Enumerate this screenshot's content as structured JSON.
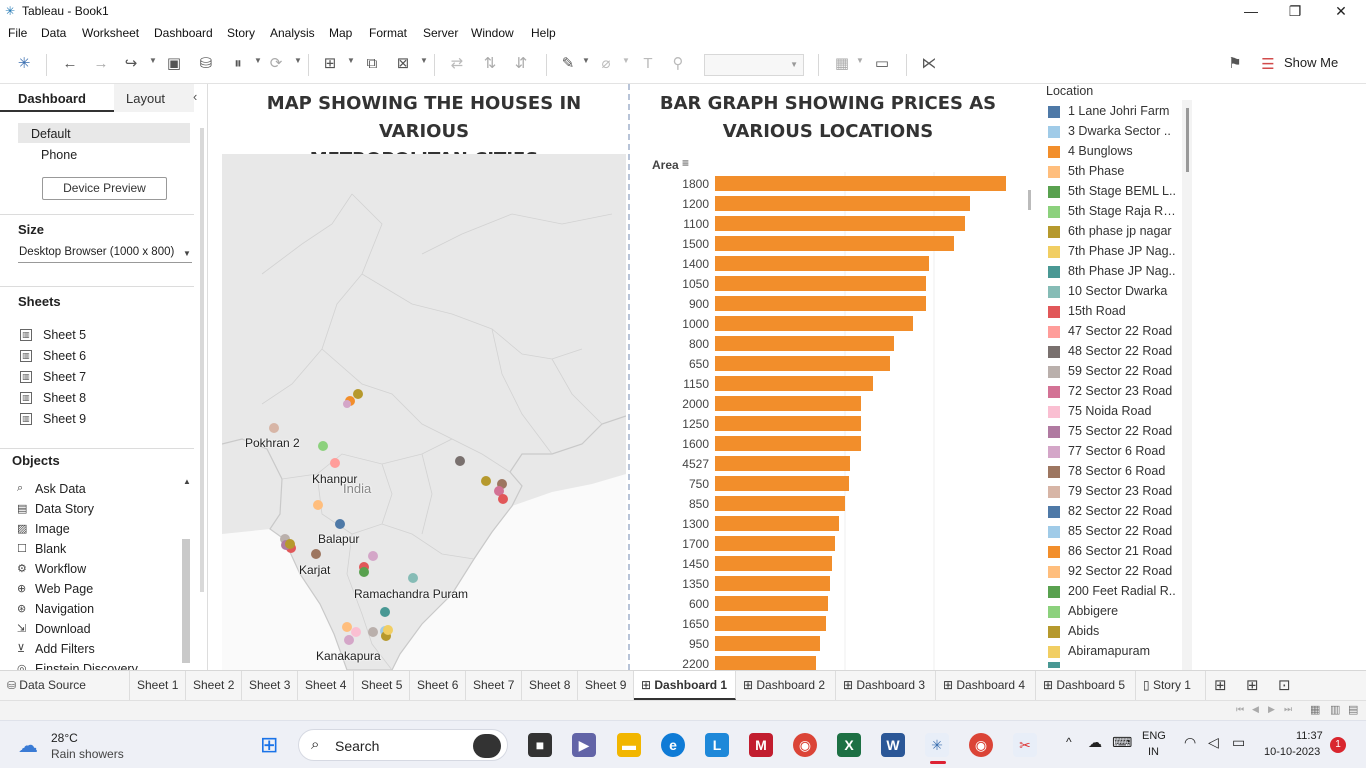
{
  "window": {
    "title": "Tableau - Book1"
  },
  "menu": [
    "File",
    "Data",
    "Worksheet",
    "Dashboard",
    "Story",
    "Analysis",
    "Map",
    "Format",
    "Server",
    "Window",
    "Help"
  ],
  "toolbar": {
    "show_me": "Show Me"
  },
  "left_panel": {
    "tabs": [
      "Dashboard",
      "Layout"
    ],
    "devices": [
      "Default",
      "Phone"
    ],
    "device_preview": "Device Preview",
    "size_title": "Size",
    "size_value": "Desktop Browser (1000 x 800)",
    "sheets_title": "Sheets",
    "sheets": [
      "Sheet 5",
      "Sheet 6",
      "Sheet 7",
      "Sheet 8",
      "Sheet 9"
    ],
    "objects_title": "Objects",
    "objects": [
      "Ask Data",
      "Data Story",
      "Image",
      "Blank",
      "Workflow",
      "Web Page",
      "Navigation",
      "Download",
      "Add Filters",
      "Einstein Discovery"
    ]
  },
  "map": {
    "title_line1": "MAP SHOWING THE HOUSES IN VARIOUS",
    "title_line2": "METROPOLITAN CITIES",
    "country_label": "India",
    "labels": [
      "Pokhran 2",
      "Khanpur",
      "Balapur",
      "Karjat",
      "Ramachandra Puram",
      "Kanakapura"
    ]
  },
  "chart_data": {
    "type": "bar",
    "title": "BAR GRAPH SHOWING PRICES AS VARIOUS LOCATIONS",
    "axis_header": "Area",
    "orientation": "horizontal",
    "color": "#f28e2b",
    "categories": [
      "1800",
      "1200",
      "1100",
      "1500",
      "1400",
      "1050",
      "900",
      "1000",
      "800",
      "650",
      "1150",
      "2000",
      "1250",
      "1600",
      "4527",
      "750",
      "850",
      "1300",
      "1700",
      "1450",
      "1350",
      "600",
      "1650",
      "950",
      "2200"
    ],
    "values": [
      291,
      255,
      250,
      239,
      214,
      211,
      211,
      198,
      179,
      175,
      158,
      146,
      146,
      146,
      135,
      134,
      130,
      124,
      120,
      117,
      115,
      113,
      111,
      105,
      101
    ]
  },
  "legend": {
    "title": "Location",
    "items": [
      {
        "label": "1 Lane Johri Farm",
        "color": "#4e79a7"
      },
      {
        "label": "3 Dwarka Sector ..",
        "color": "#a0cbe8"
      },
      {
        "label": "4 Bunglows",
        "color": "#f28e2b"
      },
      {
        "label": "5th Phase",
        "color": "#ffbe7d"
      },
      {
        "label": "5th Stage BEML L..",
        "color": "#59a14f"
      },
      {
        "label": "5th Stage Raja Ra..",
        "color": "#8cd17d"
      },
      {
        "label": "6th phase jp nagar",
        "color": "#b6992d"
      },
      {
        "label": "7th Phase JP Nag..",
        "color": "#f1ce63"
      },
      {
        "label": "8th Phase JP Nag..",
        "color": "#499894"
      },
      {
        "label": "10 Sector Dwarka",
        "color": "#86bcb6"
      },
      {
        "label": "15th Road",
        "color": "#e15759"
      },
      {
        "label": "47 Sector 22 Road",
        "color": "#ff9d9a"
      },
      {
        "label": "48 Sector 22 Road",
        "color": "#79706e"
      },
      {
        "label": "59 Sector 22 Road",
        "color": "#bab0ac"
      },
      {
        "label": "72 Sector 23 Road",
        "color": "#d37295"
      },
      {
        "label": "75 Noida Road",
        "color": "#fabfd2"
      },
      {
        "label": "75 Sector 22 Road",
        "color": "#b07aa1"
      },
      {
        "label": "77 Sector 6 Road",
        "color": "#d4a6c8"
      },
      {
        "label": "78 Sector 6 Road",
        "color": "#9d7660"
      },
      {
        "label": "79 Sector 23 Road",
        "color": "#d7b5a6"
      },
      {
        "label": "82 Sector 22 Road",
        "color": "#4e79a7"
      },
      {
        "label": "85 Sector 22 Road",
        "color": "#a0cbe8"
      },
      {
        "label": "86 Sector 21 Road",
        "color": "#f28e2b"
      },
      {
        "label": "92 Sector 22 Road",
        "color": "#ffbe7d"
      },
      {
        "label": "200 Feet Radial R..",
        "color": "#59a14f"
      },
      {
        "label": "Abbigere",
        "color": "#8cd17d"
      },
      {
        "label": "Abids",
        "color": "#b6992d"
      },
      {
        "label": "Abiramapuram",
        "color": "#f1ce63"
      }
    ]
  },
  "tabs": [
    "Data Source",
    "Sheet 1",
    "Sheet 2",
    "Sheet 3",
    "Sheet 4",
    "Sheet 5",
    "Sheet 6",
    "Sheet 7",
    "Sheet 8",
    "Sheet 9",
    "Dashboard 1",
    "Dashboard 2",
    "Dashboard 3",
    "Dashboard 4",
    "Dashboard 5",
    "Story 1"
  ],
  "active_tab": "Dashboard 1",
  "taskbar": {
    "weather_temp": "28°C",
    "weather_desc": "Rain showers",
    "search": "Search",
    "lang1": "ENG",
    "lang2": "IN",
    "time": "11:37",
    "date": "10-10-2023",
    "notif": "1"
  }
}
